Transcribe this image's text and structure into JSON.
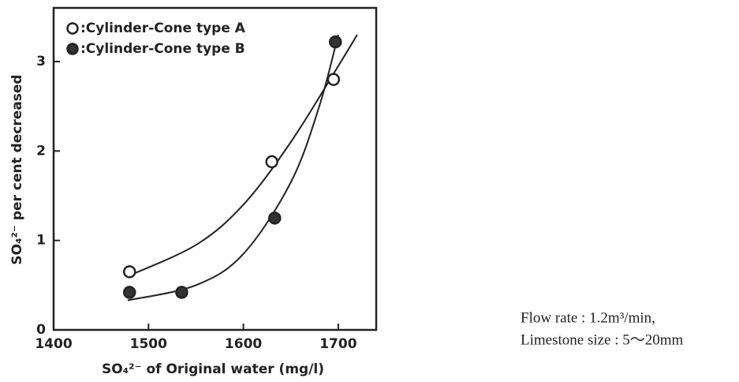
{
  "chart_data": {
    "type": "scatter",
    "xlabel": "SO₄²⁻ of Original water (mg/l)",
    "ylabel": "SO₄²⁻ per cent decreased",
    "xlim": [
      1400,
      1740
    ],
    "xticks": [
      1400,
      1500,
      1600,
      1700
    ],
    "ylim": [
      0,
      3.6
    ],
    "yticks": [
      0,
      1,
      2,
      3
    ],
    "legend": "upper left",
    "series": [
      {
        "name": ":Cylinder-Cone type A",
        "color": "#ffffff",
        "x": [
          1480,
          1630,
          1695
        ],
        "values": [
          0.65,
          1.88,
          2.8
        ],
        "curve": {
          "x": [
            1478,
            1550,
            1600,
            1650,
            1700,
            1720
          ],
          "values": [
            0.6,
            0.95,
            1.4,
            2.1,
            2.95,
            3.3
          ]
        }
      },
      {
        "name": ":Cylinder-Cone type B",
        "color": "#333333",
        "x": [
          1480,
          1535,
          1633,
          1697
        ],
        "values": [
          0.42,
          0.42,
          1.25,
          3.22
        ],
        "curve": {
          "x": [
            1478,
            1550,
            1600,
            1650,
            1680,
            1700
          ],
          "values": [
            0.33,
            0.5,
            0.85,
            1.65,
            2.5,
            3.3
          ]
        }
      }
    ],
    "annotations": [
      "Flow rate : 1.2m³/min,",
      "Limestone size : 5～20mm"
    ]
  }
}
